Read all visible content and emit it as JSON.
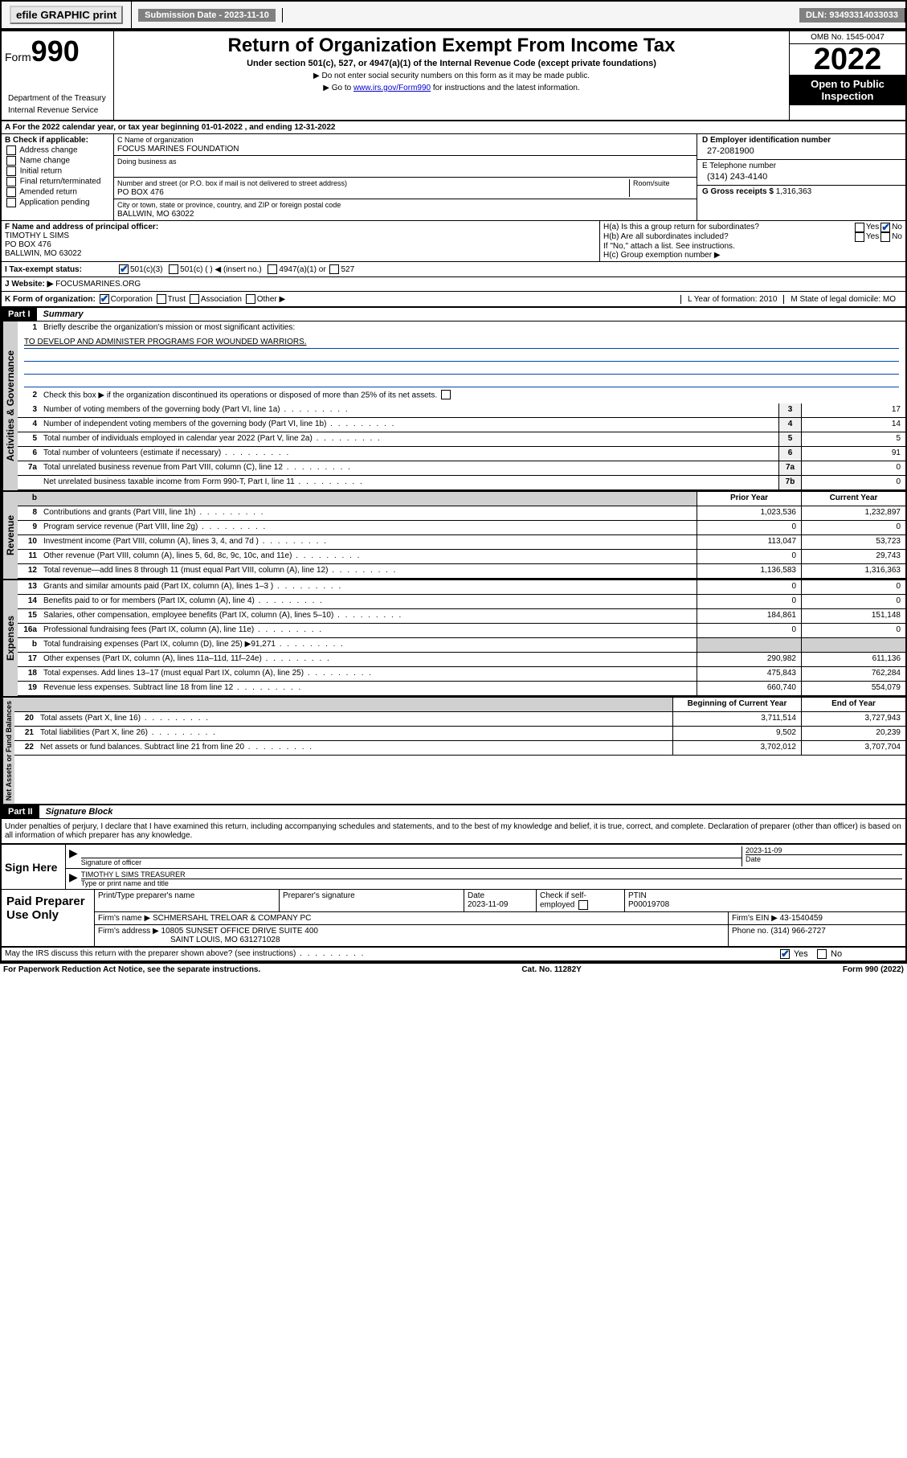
{
  "topbar": {
    "efile": "efile GRAPHIC print",
    "sub_label": "Submission Date - 2023-11-10",
    "dln": "DLN: 93493314033033"
  },
  "header": {
    "form": "Form",
    "num": "990",
    "title": "Return of Organization Exempt From Income Tax",
    "subtitle": "Under section 501(c), 527, or 4947(a)(1) of the Internal Revenue Code (except private foundations)",
    "note1": "▶ Do not enter social security numbers on this form as it may be made public.",
    "note2_pre": "▶ Go to ",
    "note2_link": "www.irs.gov/Form990",
    "note2_post": " for instructions and the latest information.",
    "omb": "OMB No. 1545-0047",
    "year": "2022",
    "open": "Open to Public Inspection",
    "dept": "Department of the Treasury",
    "irs": "Internal Revenue Service"
  },
  "rowA": {
    "label": "A For the 2022 calendar year, or tax year beginning ",
    "begin": "01-01-2022",
    "mid": "    , and ending ",
    "end": "12-31-2022"
  },
  "checkB": {
    "title": "B Check if applicable:",
    "items": [
      "Address change",
      "Name change",
      "Initial return",
      "Final return/terminated",
      "Amended return",
      "Application pending"
    ]
  },
  "colC": {
    "name_label": "C Name of organization",
    "name": "FOCUS MARINES FOUNDATION",
    "dba_label": "Doing business as",
    "dba": "",
    "street_label": "Number and street (or P.O. box if mail is not delivered to street address)",
    "room_label": "Room/suite",
    "street": "PO BOX 476",
    "city_label": "City or town, state or province, country, and ZIP or foreign postal code",
    "city": "BALLWIN, MO  63022"
  },
  "colD": {
    "d_label": "D Employer identification number",
    "d_val": "27-2081900",
    "e_label": "E Telephone number",
    "e_val": "(314) 243-4140",
    "g_label": "G Gross receipts $",
    "g_val": "1,316,363"
  },
  "officer": {
    "label": "F Name and address of principal officer:",
    "name": "TIMOTHY L SIMS",
    "street": "PO BOX 476",
    "city": "BALLWIN, MO  63022"
  },
  "hbox": {
    "ha": "H(a)  Is this a group return for subordinates?",
    "hb": "H(b)  Are all subordinates included?",
    "hb_note": "If \"No,\" attach a list. See instructions.",
    "hc": "H(c)  Group exemption number ▶",
    "yes": "Yes",
    "no": "No"
  },
  "status": {
    "i": "I   Tax-exempt status:",
    "c3": "501(c)(3)",
    "c": "501(c) (  ) ◀ (insert no.)",
    "a1": "4947(a)(1) or",
    "s527": "527",
    "j": "J   Website: ▶",
    "site": "FOCUSMARINES.ORG"
  },
  "kl": {
    "k": "K Form of organization:",
    "corp": "Corporation",
    "trust": "Trust",
    "assoc": "Association",
    "other": "Other ▶",
    "l": "L Year of formation: ",
    "lval": "2010",
    "m": "M State of legal domicile:",
    "mval": "MO"
  },
  "part1": {
    "label": "Part I",
    "title": "Summary",
    "mission_label": "Briefly describe the organization's mission or most significant activities:",
    "mission": "TO DEVELOP AND ADMINISTER PROGRAMS FOR WOUNDED WARRIORS.",
    "line2": "Check this box ▶       if the organization discontinued its operations or disposed of more than 25% of its net assets.",
    "ag_tab": "Activities & Governance",
    "rev_tab": "Revenue",
    "exp_tab": "Expenses",
    "na_tab": "Net Assets or Fund Balances"
  },
  "ag_lines": [
    {
      "n": "3",
      "t": "Number of voting members of the governing body (Part VI, line 1a)",
      "b": "3",
      "v": "17"
    },
    {
      "n": "4",
      "t": "Number of independent voting members of the governing body (Part VI, line 1b)",
      "b": "4",
      "v": "14"
    },
    {
      "n": "5",
      "t": "Total number of individuals employed in calendar year 2022 (Part V, line 2a)",
      "b": "5",
      "v": "5"
    },
    {
      "n": "6",
      "t": "Total number of volunteers (estimate if necessary)",
      "b": "6",
      "v": "91"
    },
    {
      "n": "7a",
      "t": "Total unrelated business revenue from Part VIII, column (C), line 12",
      "b": "7a",
      "v": "0"
    },
    {
      "n": "",
      "t": "Net unrelated business taxable income from Form 990-T, Part I, line 11",
      "b": "7b",
      "v": "0"
    }
  ],
  "rev_head": {
    "prior": "Prior Year",
    "curr": "Current Year"
  },
  "rev_lines": [
    {
      "n": "8",
      "t": "Contributions and grants (Part VIII, line 1h)",
      "p": "1,023,536",
      "c": "1,232,897"
    },
    {
      "n": "9",
      "t": "Program service revenue (Part VIII, line 2g)",
      "p": "0",
      "c": "0"
    },
    {
      "n": "10",
      "t": "Investment income (Part VIII, column (A), lines 3, 4, and 7d )",
      "p": "113,047",
      "c": "53,723"
    },
    {
      "n": "11",
      "t": "Other revenue (Part VIII, column (A), lines 5, 6d, 8c, 9c, 10c, and 11e)",
      "p": "0",
      "c": "29,743"
    },
    {
      "n": "12",
      "t": "Total revenue—add lines 8 through 11 (must equal Part VIII, column (A), line 12)",
      "p": "1,136,583",
      "c": "1,316,363"
    }
  ],
  "exp_lines": [
    {
      "n": "13",
      "t": "Grants and similar amounts paid (Part IX, column (A), lines 1–3 )",
      "p": "0",
      "c": "0"
    },
    {
      "n": "14",
      "t": "Benefits paid to or for members (Part IX, column (A), line 4)",
      "p": "0",
      "c": "0"
    },
    {
      "n": "15",
      "t": "Salaries, other compensation, employee benefits (Part IX, column (A), lines 5–10)",
      "p": "184,861",
      "c": "151,148"
    },
    {
      "n": "16a",
      "t": "Professional fundraising fees (Part IX, column (A), line 11e)",
      "p": "0",
      "c": "0"
    },
    {
      "n": "b",
      "t": "Total fundraising expenses (Part IX, column (D), line 25) ▶91,271",
      "p": "",
      "c": "",
      "gray": true
    },
    {
      "n": "17",
      "t": "Other expenses (Part IX, column (A), lines 11a–11d, 11f–24e)",
      "p": "290,982",
      "c": "611,136"
    },
    {
      "n": "18",
      "t": "Total expenses. Add lines 13–17 (must equal Part IX, column (A), line 25)",
      "p": "475,843",
      "c": "762,284"
    },
    {
      "n": "19",
      "t": "Revenue less expenses. Subtract line 18 from line 12",
      "p": "660,740",
      "c": "554,079"
    }
  ],
  "na_head": {
    "begin": "Beginning of Current Year",
    "end": "End of Year"
  },
  "na_lines": [
    {
      "n": "20",
      "t": "Total assets (Part X, line 16)",
      "p": "3,711,514",
      "c": "3,727,943"
    },
    {
      "n": "21",
      "t": "Total liabilities (Part X, line 26)",
      "p": "9,502",
      "c": "20,239"
    },
    {
      "n": "22",
      "t": "Net assets or fund balances. Subtract line 21 from line 20",
      "p": "3,702,012",
      "c": "3,707,704"
    }
  ],
  "part2": {
    "label": "Part II",
    "title": "Signature Block",
    "decl": "Under penalties of perjury, I declare that I have examined this return, including accompanying schedules and statements, and to the best of my knowledge and belief, it is true, correct, and complete. Declaration of preparer (other than officer) is based on all information of which preparer has any knowledge."
  },
  "sign": {
    "here": "Sign Here",
    "sig_officer": "Signature of officer",
    "date_label": "Date",
    "date": "2023-11-09",
    "name": "TIMOTHY L SIMS  TREASURER",
    "name_label": "Type or print name and title"
  },
  "preparer": {
    "label": "Paid Preparer Use Only",
    "h1": "Print/Type preparer's name",
    "h2": "Preparer's signature",
    "h3": "Date",
    "h3v": "2023-11-09",
    "h4": "Check         if self-employed",
    "h5": "PTIN",
    "h5v": "P00019708",
    "firm_label": "Firm's name    ▶",
    "firm": "SCHMERSAHL TRELOAR & COMPANY PC",
    "ein_label": "Firm's EIN ▶",
    "ein": "43-1540459",
    "addr_label": "Firm's address ▶",
    "addr1": "10805 SUNSET OFFICE DRIVE SUITE 400",
    "addr2": "SAINT LOUIS, MO  631271028",
    "phone_label": "Phone no.",
    "phone": "(314) 966-2727"
  },
  "footer": {
    "discuss": "May the IRS discuss this return with the preparer shown above? (see instructions)",
    "yes": "Yes",
    "no": "No",
    "pra": "For Paperwork Reduction Act Notice, see the separate instructions.",
    "cat": "Cat. No. 11282Y",
    "form": "Form 990 (2022)"
  }
}
